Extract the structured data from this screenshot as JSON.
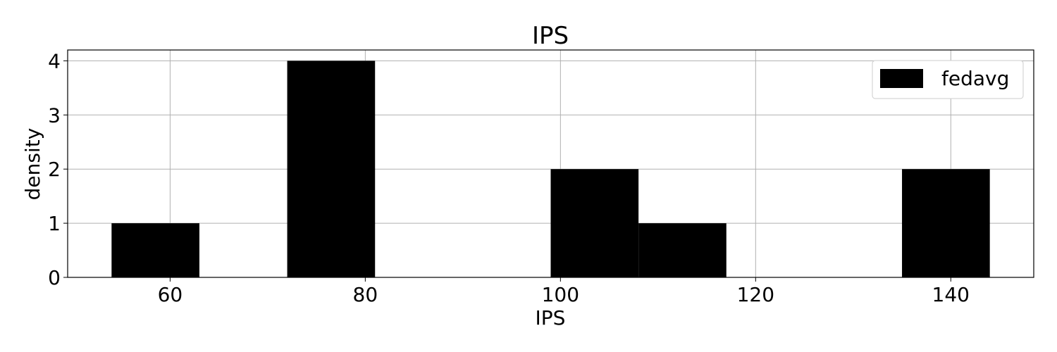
{
  "chart_data": {
    "type": "bar",
    "title": "IPS",
    "xlabel": "IPS",
    "ylabel": "density",
    "xlim": [
      49.5,
      148.5
    ],
    "ylim": [
      0,
      4.2
    ],
    "xticks": [
      60,
      80,
      100,
      120,
      140
    ],
    "yticks": [
      0,
      1,
      2,
      3,
      4
    ],
    "grid": true,
    "legend_position": "top-right",
    "series": [
      {
        "name": "fedavg",
        "color": "#000000",
        "bins": [
          {
            "x0": 54,
            "x1": 63,
            "value": 1
          },
          {
            "x0": 63,
            "x1": 72,
            "value": 0
          },
          {
            "x0": 72,
            "x1": 81,
            "value": 4
          },
          {
            "x0": 81,
            "x1": 90,
            "value": 0
          },
          {
            "x0": 90,
            "x1": 99,
            "value": 0
          },
          {
            "x0": 99,
            "x1": 108,
            "value": 2
          },
          {
            "x0": 108,
            "x1": 117,
            "value": 1
          },
          {
            "x0": 117,
            "x1": 126,
            "value": 0
          },
          {
            "x0": 126,
            "x1": 135,
            "value": 0
          },
          {
            "x0": 135,
            "x1": 144,
            "value": 2
          }
        ]
      }
    ]
  }
}
